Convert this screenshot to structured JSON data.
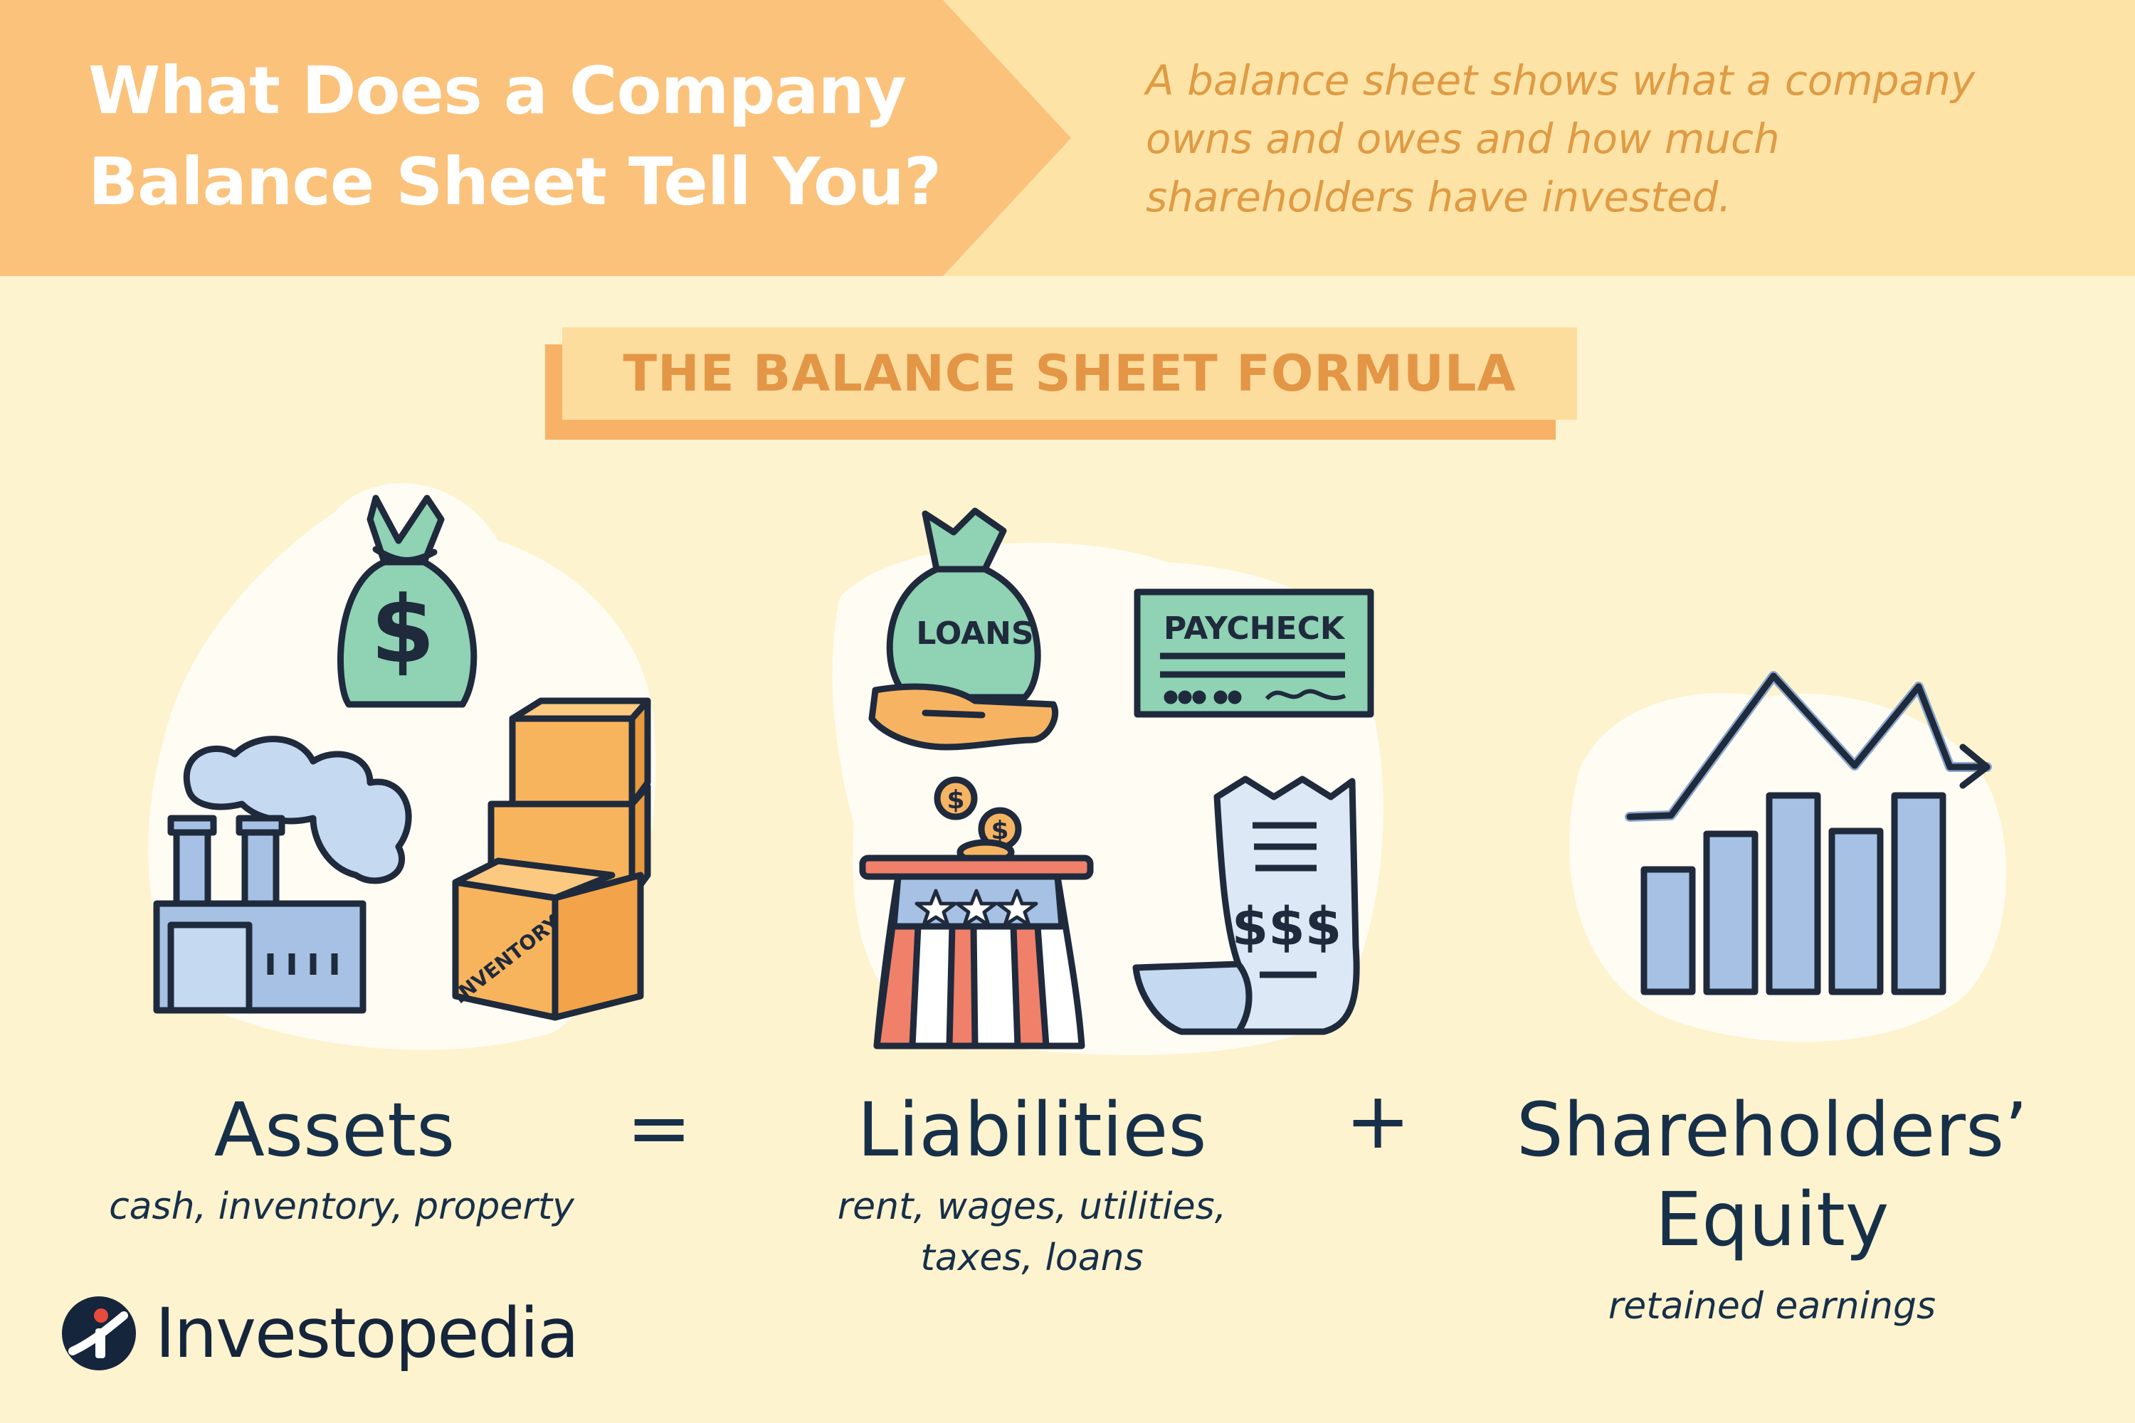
{
  "header": {
    "title_lines": [
      "What Does a Company",
      "Balance Sheet Tell You?"
    ],
    "subtitle_lines": [
      "A balance sheet shows what a company",
      "owns and owes and how much",
      "shareholders have invested."
    ]
  },
  "banner": {
    "label": "THE BALANCE SHEET FORMULA"
  },
  "formula": {
    "assets": {
      "label": "Assets",
      "examples": "cash, inventory, property"
    },
    "equals": "=",
    "liabilities": {
      "label": "Liabilities",
      "examples_lines": [
        "rent, wages, utilities,",
        "taxes, loans"
      ]
    },
    "plus": "+",
    "equity": {
      "label_lines": [
        "Shareholders’",
        "Equity"
      ],
      "examples": "retained earnings"
    }
  },
  "illustrations": {
    "money_bag_symbol": "$",
    "inventory_label": "INVENTORY",
    "loans_label": "LOANS",
    "paycheck_label": "PAYCHECK",
    "receipt_label": "$$$",
    "coin_symbol": "$",
    "icons": [
      "money-bag-icon",
      "factory-icon",
      "boxes-icon",
      "loan-bag-icon",
      "paycheck-icon",
      "top-hat-icon",
      "receipt-icon",
      "growth-chart-icon"
    ]
  },
  "brand": {
    "name": "Investopedia"
  },
  "colors": {
    "background": "#fef3cf",
    "header_band": "#fde4a6",
    "header_arrow": "#fbc27b",
    "accent_orange": "#e39646",
    "navy_text": "#173049",
    "mint": "#8fd2b4",
    "blue": "#a6c1e3",
    "box_orange": "#f8b45c"
  }
}
